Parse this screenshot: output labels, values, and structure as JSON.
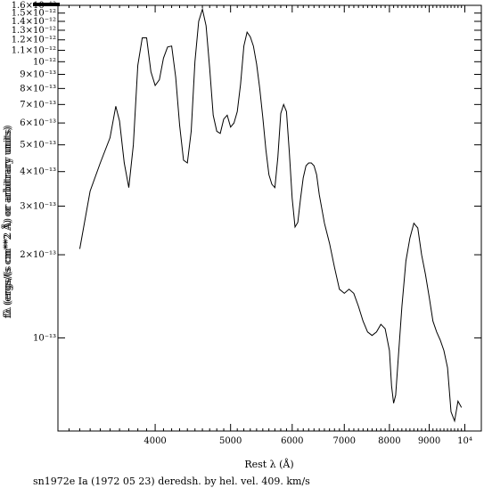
{
  "chart_data": {
    "type": "line",
    "xlabel": "Rest λ (Å)",
    "ylabel": "fλ (ergs/(s cm**2 Å) or arbitrary units)",
    "ylabel_overlay": "fλ (ergs/(s cm**2 Å) or arbitrary units)",
    "caption": "sn1972e Ia (1972 05 23) deredsh. by hel. vel.   409. km/s",
    "x_scale": "log",
    "y_scale": "log",
    "xlim": [
      3000,
      10500
    ],
    "ylim": [
      4.6e-14,
      1.6e-12
    ],
    "x_ticks": [
      {
        "value": 4000,
        "label": "4000"
      },
      {
        "value": 5000,
        "label": "5000"
      },
      {
        "value": 6000,
        "label": "6000"
      },
      {
        "value": 7000,
        "label": "7000"
      },
      {
        "value": 8000,
        "label": "8000"
      },
      {
        "value": 9000,
        "label": "9000"
      },
      {
        "value": 10000,
        "label": "10⁴"
      }
    ],
    "y_ticks": [
      {
        "value": 1.6e-12,
        "label": "1.6×10⁻¹²"
      },
      {
        "value": 1.5e-12,
        "label": "1.5×10⁻¹²"
      },
      {
        "value": 1.4e-12,
        "label": "1.4×10⁻¹²"
      },
      {
        "value": 1.3e-12,
        "label": "1.3×10⁻¹²"
      },
      {
        "value": 1.2e-12,
        "label": "1.2×10⁻¹²"
      },
      {
        "value": 1.1e-12,
        "label": "1.1×10⁻¹²"
      },
      {
        "value": 1e-12,
        "label": "10⁻¹²"
      },
      {
        "value": 9e-13,
        "label": "9×10⁻¹³"
      },
      {
        "value": 8e-13,
        "label": "8×10⁻¹³"
      },
      {
        "value": 7e-13,
        "label": "7×10⁻¹³"
      },
      {
        "value": 6e-13,
        "label": "6×10⁻¹³"
      },
      {
        "value": 5e-13,
        "label": "5×10⁻¹³"
      },
      {
        "value": 4e-13,
        "label": "4×10⁻¹³"
      },
      {
        "value": 3e-13,
        "label": "3×10⁻¹³"
      },
      {
        "value": 2e-13,
        "label": "2×10⁻¹³"
      },
      {
        "value": 1e-13,
        "label": "10⁻¹³"
      }
    ],
    "series": [
      {
        "x": [
          3200,
          3300,
          3400,
          3500,
          3560,
          3600,
          3650,
          3700,
          3750,
          3800,
          3850,
          3900,
          3950,
          4000,
          4050,
          4100,
          4150,
          4200,
          4250,
          4300,
          4350,
          4400,
          4450,
          4500,
          4550,
          4600,
          4650,
          4700,
          4750,
          4800,
          4850,
          4900,
          4950,
          5000,
          5050,
          5100,
          5150,
          5200,
          5250,
          5300,
          5350,
          5400,
          5450,
          5500,
          5550,
          5600,
          5650,
          5700,
          5750,
          5800,
          5850,
          5900,
          5950,
          6000,
          6050,
          6100,
          6150,
          6200,
          6250,
          6300,
          6350,
          6400,
          6450,
          6500,
          6600,
          6700,
          6800,
          6900,
          7000,
          7100,
          7200,
          7300,
          7400,
          7500,
          7600,
          7700,
          7800,
          7900,
          8000,
          8050,
          8100,
          8150,
          8200,
          8300,
          8400,
          8500,
          8600,
          8700,
          8800,
          8900,
          9000,
          9100,
          9200,
          9300,
          9400,
          9500,
          9600,
          9700,
          9800,
          9900
        ],
        "y": [
          2.1e-13,
          3.4e-13,
          4.3e-13,
          5.3e-13,
          6.9e-13,
          6.1e-13,
          4.3e-13,
          3.5e-13,
          5e-13,
          9.7e-13,
          1.22e-12,
          1.22e-12,
          9.2e-13,
          8.2e-13,
          8.6e-13,
          1.03e-12,
          1.13e-12,
          1.14e-12,
          8.8e-13,
          5.9e-13,
          4.4e-13,
          4.3e-13,
          5.6e-13,
          1e-12,
          1.4e-12,
          1.55e-12,
          1.35e-12,
          9.5e-13,
          6.4e-13,
          5.6e-13,
          5.5e-13,
          6.2e-13,
          6.4e-13,
          5.8e-13,
          6e-13,
          6.6e-13,
          8.3e-13,
          1.14e-12,
          1.28e-12,
          1.23e-12,
          1.14e-12,
          9.8e-13,
          8e-13,
          6.3e-13,
          4.8e-13,
          3.9e-13,
          3.6e-13,
          3.5e-13,
          4.5e-13,
          6.5e-13,
          7e-13,
          6.6e-13,
          4.7e-13,
          3.2e-13,
          2.52e-13,
          2.62e-13,
          3.2e-13,
          3.8e-13,
          4.2e-13,
          4.3e-13,
          4.3e-13,
          4.2e-13,
          3.9e-13,
          3.3e-13,
          2.6e-13,
          2.2e-13,
          1.8e-13,
          1.5e-13,
          1.45e-13,
          1.5e-13,
          1.45e-13,
          1.3e-13,
          1.15e-13,
          1.05e-13,
          1.02e-13,
          1.05e-13,
          1.12e-13,
          1.08e-13,
          9e-14,
          6.7e-14,
          5.8e-14,
          6.2e-14,
          8e-14,
          1.3e-13,
          1.9e-13,
          2.3e-13,
          2.6e-13,
          2.5e-13,
          2e-13,
          1.7e-13,
          1.4e-13,
          1.15e-13,
          1.05e-13,
          9.8e-14,
          9e-14,
          7.8e-14,
          5.4e-14,
          5e-14,
          5.9e-14,
          5.6e-14
        ]
      }
    ]
  }
}
